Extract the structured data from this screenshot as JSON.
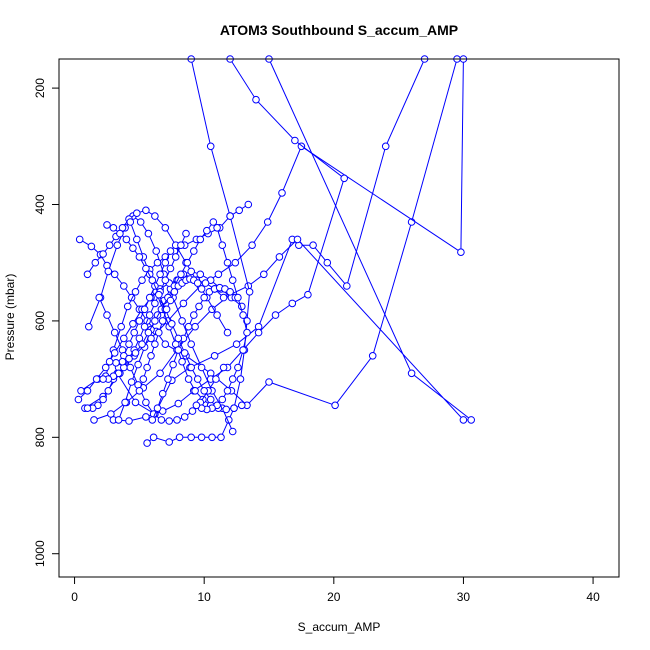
{
  "chart_data": {
    "type": "line",
    "title": "ATOM3 Southbound S_accum_AMP",
    "xlabel": "S_accum_AMP",
    "ylabel": "Pressure (mbar)",
    "xlim": [
      -1.2,
      42
    ],
    "ylim": [
      1040,
      150
    ],
    "y_reversed": true,
    "grid": false,
    "x_ticks": [
      0,
      10,
      20,
      30,
      40
    ],
    "y_ticks": [
      200,
      400,
      600,
      800,
      1000
    ],
    "color": "#0000ff",
    "marker": "open-circle",
    "series": [
      {
        "x": [
          0.4,
          1.3,
          2.0,
          2.5,
          3.1,
          3.8,
          4.4,
          5.0,
          5.6,
          6.3,
          7.0,
          8.6,
          10.5,
          12.1,
          13.3,
          15.0,
          20.1,
          23.0,
          26.0,
          29.5
        ],
        "y": [
          460,
          472,
          486,
          505,
          520,
          540,
          560,
          580,
          600,
          618,
          640,
          660,
          690,
          720,
          745,
          705,
          745,
          660,
          430,
          150
        ]
      },
      {
        "x": [
          0.5,
          1.8,
          3.3,
          4.7,
          6.2,
          7.5,
          8.9,
          10.8,
          12.5,
          14.2,
          16.8,
          17.3,
          18.4,
          19.5,
          21.0,
          24.0,
          27.0
        ],
        "y": [
          720,
          700,
          690,
          740,
          760,
          702,
          680,
          660,
          640,
          610,
          460,
          470,
          470,
          500,
          540,
          300,
          150
        ]
      },
      {
        "x": [
          0.8,
          2.2,
          3.5,
          4.6,
          5.9,
          7.2,
          8.4,
          9.7,
          11.1,
          12.4,
          13.7,
          14.9,
          16.0,
          17.5,
          29.8,
          30.0
        ],
        "y": [
          750,
          730,
          690,
          660,
          630,
          600,
          570,
          540,
          520,
          500,
          470,
          430,
          380,
          300,
          482,
          150
        ]
      },
      {
        "x": [
          1.5,
          2.8,
          4.0,
          5.3,
          6.6,
          7.9,
          9.3,
          10.6,
          12.0,
          13.4,
          14.6,
          15.8,
          17.2,
          30.0,
          30.6,
          26.0,
          15.0
        ],
        "y": [
          770,
          760,
          740,
          715,
          690,
          650,
          610,
          580,
          555,
          540,
          520,
          490,
          460,
          770,
          770,
          690,
          150
        ]
      },
      {
        "x": [
          3.0,
          4.2,
          5.5,
          6.8,
          8.0,
          9.2,
          10.5,
          11.8,
          13.0,
          14.2,
          15.5,
          16.8,
          18.0,
          20.8,
          17.0,
          14.0,
          12.0
        ],
        "y": [
          770,
          772,
          765,
          755,
          742,
          720,
          700,
          680,
          650,
          620,
          590,
          570,
          555,
          355,
          290,
          220,
          150
        ]
      },
      {
        "x": [
          5.6,
          6.1,
          7.3,
          8.1,
          9.0,
          9.8,
          10.6,
          11.3,
          11.9,
          12.3,
          12.8,
          13.1,
          13.3,
          13.5,
          12.0,
          10.5,
          9.0
        ],
        "y": [
          810,
          800,
          808,
          800,
          800,
          800,
          800,
          800,
          770,
          750,
          700,
          650,
          600,
          550,
          420,
          300,
          150
        ]
      },
      {
        "x": [
          1.1,
          2.0,
          2.6,
          3.3,
          3.9,
          4.5,
          5.1,
          5.7,
          6.3,
          6.9,
          7.6,
          8.3,
          9.0,
          9.8,
          10.6,
          11.4,
          12.2
        ],
        "y": [
          610,
          560,
          515,
          470,
          440,
          420,
          430,
          450,
          480,
          520,
          560,
          600,
          640,
          680,
          720,
          750,
          790
        ]
      },
      {
        "x": [
          2.4,
          3.0,
          3.6,
          4.1,
          4.7,
          5.2,
          5.8,
          6.4,
          7.0,
          7.7,
          8.5,
          9.4,
          10.3,
          11.2,
          12.0,
          12.7,
          13.4
        ],
        "y": [
          695,
          650,
          610,
          575,
          550,
          530,
          512,
          500,
          490,
          480,
          470,
          460,
          450,
          440,
          420,
          410,
          400
        ]
      },
      {
        "x": [
          1.0,
          1.6,
          2.2,
          2.7,
          3.2,
          3.7,
          4.2,
          4.8,
          5.5,
          6.2,
          7.0,
          7.8,
          8.6,
          9.4,
          10.2,
          11.0,
          11.8
        ],
        "y": [
          520,
          500,
          485,
          470,
          455,
          440,
          425,
          415,
          410,
          420,
          440,
          470,
          500,
          530,
          560,
          590,
          620
        ]
      },
      {
        "x": [
          3.4,
          3.9,
          4.4,
          4.9,
          5.4,
          5.9,
          6.4,
          6.9,
          7.4,
          7.9,
          8.4,
          9.0,
          9.7,
          10.5,
          11.3,
          12.1,
          12.9
        ],
        "y": [
          770,
          740,
          705,
          675,
          645,
          615,
          590,
          565,
          545,
          530,
          520,
          515,
          520,
          530,
          545,
          560,
          575
        ]
      },
      {
        "x": [
          4.3,
          4.8,
          5.3,
          5.8,
          6.3,
          6.8,
          7.3,
          7.8,
          8.3,
          8.8,
          9.3,
          9.9,
          10.5,
          11.1,
          11.7,
          12.3,
          12.9
        ],
        "y": [
          430,
          460,
          490,
          520,
          550,
          580,
          610,
          640,
          670,
          700,
          720,
          735,
          745,
          750,
          752,
          750,
          745
        ]
      },
      {
        "x": [
          1.9,
          2.5,
          3.1,
          3.7,
          4.3,
          4.9,
          5.5,
          6.1,
          6.7,
          7.3,
          7.9,
          8.5,
          9.1,
          9.7,
          10.3,
          10.9,
          11.5
        ],
        "y": [
          560,
          590,
          620,
          650,
          680,
          710,
          740,
          760,
          770,
          772,
          770,
          765,
          755,
          740,
          720,
          700,
          680
        ]
      },
      {
        "x": [
          0.3,
          1.0,
          1.7,
          2.4,
          3.1,
          3.8,
          4.5,
          5.2,
          5.9,
          6.6,
          7.3,
          8.0,
          8.7,
          9.4,
          10.1,
          10.8,
          11.5
        ],
        "y": [
          735,
          720,
          700,
          680,
          655,
          630,
          605,
          580,
          560,
          545,
          535,
          530,
          528,
          530,
          535,
          545,
          560
        ]
      },
      {
        "x": [
          6.0,
          6.4,
          6.8,
          7.2,
          7.6,
          8.0,
          8.4,
          8.8,
          9.2,
          9.6,
          10.0,
          10.4,
          10.8,
          11.2,
          11.6,
          12.0,
          12.4
        ],
        "y": [
          770,
          750,
          725,
          700,
          675,
          650,
          630,
          610,
          590,
          575,
          560,
          550,
          545,
          543,
          545,
          550,
          560
        ]
      },
      {
        "x": [
          7.4,
          7.0,
          6.6,
          6.2,
          5.8,
          5.4,
          5.0,
          4.6,
          4.2,
          3.8,
          3.4,
          3.0,
          2.6,
          2.2,
          1.8,
          1.4,
          1.0
        ],
        "y": [
          480,
          500,
          520,
          540,
          560,
          580,
          600,
          620,
          640,
          660,
          680,
          700,
          720,
          735,
          745,
          750,
          750
        ]
      },
      {
        "x": [
          8.6,
          8.2,
          7.8,
          7.4,
          7.0,
          6.6,
          6.2,
          5.8,
          5.4,
          5.0,
          4.6,
          4.2,
          3.8,
          3.4,
          3.0,
          2.6,
          2.2
        ],
        "y": [
          450,
          470,
          490,
          510,
          530,
          550,
          570,
          590,
          610,
          630,
          650,
          665,
          680,
          690,
          695,
          700,
          700
        ]
      },
      {
        "x": [
          10.7,
          10.2,
          9.7,
          9.2,
          8.7,
          8.2,
          7.7,
          7.2,
          6.7,
          6.2,
          5.7,
          5.2,
          4.7,
          4.2,
          3.7,
          3.2,
          2.7
        ],
        "y": [
          430,
          445,
          460,
          480,
          500,
          520,
          540,
          560,
          580,
          600,
          620,
          640,
          655,
          665,
          670,
          672,
          670
        ]
      },
      {
        "x": [
          11.0,
          11.4,
          11.8,
          12.2,
          12.6,
          13.0,
          13.3,
          13.0,
          12.6,
          12.2,
          11.8,
          11.4,
          11.0,
          10.6,
          10.2,
          9.8,
          9.4
        ],
        "y": [
          440,
          470,
          500,
          530,
          560,
          590,
          620,
          650,
          680,
          700,
          720,
          735,
          745,
          750,
          752,
          750,
          745
        ]
      },
      {
        "x": [
          2.5,
          3.0,
          3.5,
          4.0,
          4.5,
          5.0,
          5.5,
          6.0,
          6.5,
          7.0,
          7.5,
          8.0,
          8.5,
          9.0,
          9.5,
          10.0,
          10.5
        ],
        "y": [
          435,
          440,
          450,
          460,
          475,
          490,
          510,
          530,
          555,
          580,
          605,
          630,
          655,
          680,
          700,
          720,
          735
        ]
      },
      {
        "x": [
          5.0,
          5.3,
          5.6,
          5.9,
          6.2,
          6.5,
          6.8,
          7.1,
          7.4,
          7.7,
          8.0,
          8.3,
          8.6,
          8.9,
          9.2,
          9.5,
          9.8
        ],
        "y": [
          720,
          700,
          680,
          660,
          640,
          620,
          600,
          580,
          565,
          550,
          540,
          535,
          530,
          528,
          530,
          535,
          545
        ]
      }
    ]
  }
}
